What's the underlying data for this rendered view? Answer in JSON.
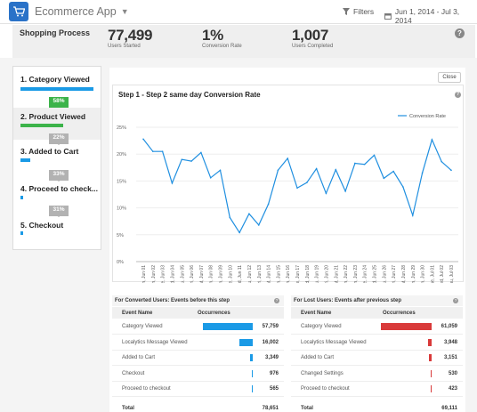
{
  "app": {
    "title": "Ecommerce App"
  },
  "toolbar": {
    "filters_label": "Filters",
    "date_range": "Jun 1, 2014 - Jul 3, 2014"
  },
  "summary": {
    "title": "Shopping Process",
    "metrics": [
      {
        "value": "77,499",
        "label": "Users Started"
      },
      {
        "value": "1%",
        "label": "Conversion Rate"
      },
      {
        "value": "1,007",
        "label": "Users Completed"
      }
    ]
  },
  "steps": [
    {
      "label": "1. Category Viewed",
      "bar_fraction": 1.0
    },
    {
      "label": "2. Product Viewed",
      "bar_fraction": 0.58
    },
    {
      "label": "3. Added to Cart",
      "bar_fraction": 0.13
    },
    {
      "label": "4. Proceed to check...",
      "bar_fraction": 0.04
    },
    {
      "label": "5. Checkout",
      "bar_fraction": 0.01
    }
  ],
  "conversions": [
    "58%",
    "22%",
    "33%",
    "31%"
  ],
  "panel": {
    "close_label": "Close"
  },
  "chart_data": {
    "type": "line",
    "title": "Step 1 - Step 2 same day Conversion Rate",
    "legend": "Conversion Rate",
    "legend_position": "top-right",
    "ylim": [
      0,
      25
    ],
    "yticks": [
      "25%",
      "20%",
      "15%",
      "10%",
      "5%",
      "0%"
    ],
    "x": [
      "Sun, Jun 01",
      "Mon, Jun 02",
      "Tue, Jun 03",
      "Wed, Jun 04",
      "Thu, Jun 05",
      "Fri, Jun 06",
      "Sat, Jun 07",
      "Sun, Jun 08",
      "Mon, Jun 09",
      "Tue, Jun 10",
      "Wed, Jun 11",
      "Thu, Jun 12",
      "Fri, Jun 13",
      "Sat, Jun 14",
      "Sun, Jun 15",
      "Mon, Jun 16",
      "Tue, Jun 17",
      "Wed, Jun 18",
      "Thu, Jun 19",
      "Fri, Jun 20",
      "Sat, Jun 21",
      "Sun, Jun 22",
      "Mon, Jun 23",
      "Tue, Jun 24",
      "Wed, Jun 25",
      "Thu, Jun 26",
      "Fri, Jun 27",
      "Sat, Jun 28",
      "Sun, Jun 29",
      "Mon, Jun 30",
      "Tue, Jul 01",
      "Wed, Jul 02",
      "Thu, Jul 03"
    ],
    "values": [
      22.8,
      20.5,
      20.5,
      14.6,
      19.0,
      18.7,
      20.3,
      15.6,
      17.0,
      8.2,
      5.4,
      8.9,
      6.8,
      10.7,
      17.0,
      19.2,
      13.7,
      14.7,
      17.3,
      12.7,
      17.1,
      13.1,
      18.3,
      18.1,
      19.8,
      15.5,
      16.8,
      13.9,
      8.6,
      16.5,
      22.7,
      18.6,
      17.0
    ],
    "grid": true
  },
  "converted_table": {
    "title": "For Converted Users: Events before this step",
    "col_event": "Event Name",
    "col_occ": "Occurrences",
    "color": "#1a9ae6",
    "rows": [
      {
        "name": "Category Viewed",
        "value": "57,759",
        "fraction": 0.734
      },
      {
        "name": "Localytics Message Viewed",
        "value": "16,002",
        "fraction": 0.203
      },
      {
        "name": "Added to Cart",
        "value": "3,349",
        "fraction": 0.043
      },
      {
        "name": "Checkout",
        "value": "976",
        "fraction": 0.012
      },
      {
        "name": "Proceed to checkout",
        "value": "565",
        "fraction": 0.007
      }
    ],
    "total_label": "Total",
    "total_value": "78,651"
  },
  "lost_table": {
    "title": "For Lost Users: Events after previous step",
    "col_event": "Event Name",
    "col_occ": "Occurrences",
    "color": "#d93a3a",
    "rows": [
      {
        "name": "Category Viewed",
        "value": "61,059",
        "fraction": 0.883
      },
      {
        "name": "Localytics Message Viewed",
        "value": "3,948",
        "fraction": 0.057
      },
      {
        "name": "Added to Cart",
        "value": "3,151",
        "fraction": 0.046
      },
      {
        "name": "Changed Settings",
        "value": "530",
        "fraction": 0.008
      },
      {
        "name": "Proceed to checkout",
        "value": "423",
        "fraction": 0.006
      }
    ],
    "total_label": "Total",
    "total_value": "69,111"
  }
}
